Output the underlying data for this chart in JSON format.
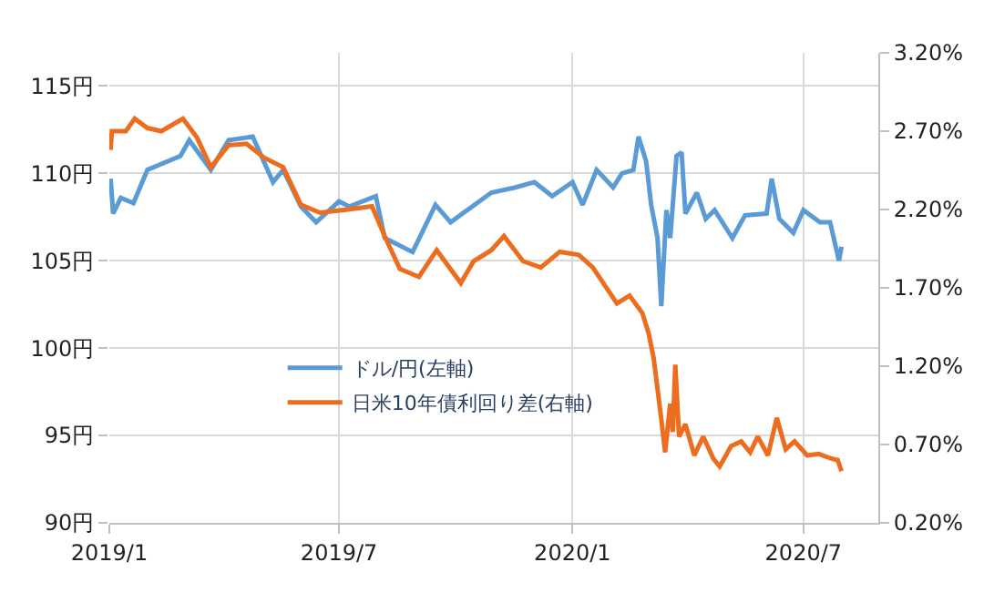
{
  "chart_data": {
    "type": "line",
    "xlim": [
      "2019-01-01",
      "2020-08-29"
    ],
    "xticks": [
      {
        "value": "2019-01-01",
        "label": "2019/1"
      },
      {
        "value": "2019-07-01",
        "label": "2019/7"
      },
      {
        "value": "2020-01-01",
        "label": "2020/1"
      },
      {
        "value": "2020-07-01",
        "label": "2020/7"
      }
    ],
    "ylim": [
      90,
      116.9
    ],
    "yticks": [
      {
        "value": 90,
        "label": "90円"
      },
      {
        "value": 95,
        "label": "95円"
      },
      {
        "value": 100,
        "label": "100円"
      },
      {
        "value": 105,
        "label": "105円"
      },
      {
        "value": 110,
        "label": "110円"
      },
      {
        "value": 115,
        "label": "115円"
      }
    ],
    "y2lim": [
      0.2,
      3.2
    ],
    "y2ticks": [
      {
        "value": 0.2,
        "label": "0.20%"
      },
      {
        "value": 0.7,
        "label": "0.70%"
      },
      {
        "value": 1.2,
        "label": "1.20%"
      },
      {
        "value": 1.7,
        "label": "1.70%"
      },
      {
        "value": 2.2,
        "label": "2.20%"
      },
      {
        "value": 2.7,
        "label": "2.70%"
      },
      {
        "value": 3.2,
        "label": "3.20%"
      }
    ],
    "grid": true,
    "legend": "bottom left",
    "marker": "none",
    "line_style": "solid",
    "series": [
      {
        "name": "ドル/円(左軸)",
        "color": "#5b9bd5",
        "axis": "y",
        "x": [
          "2019-01-02",
          "2019-01-04",
          "2019-01-10",
          "2019-01-20",
          "2019-01-31",
          "2019-02-26",
          "2019-03-05",
          "2019-03-22",
          "2019-04-05",
          "2019-04-24",
          "2019-05-10",
          "2019-05-18",
          "2019-06-01",
          "2019-06-13",
          "2019-07-01",
          "2019-07-09",
          "2019-07-30",
          "2019-08-06",
          "2019-08-28",
          "2019-09-15",
          "2019-09-27",
          "2019-10-10",
          "2019-10-29",
          "2019-11-17",
          "2019-12-02",
          "2019-12-16",
          "2020-01-01",
          "2020-01-09",
          "2020-01-20",
          "2020-02-02",
          "2020-02-09",
          "2020-02-18",
          "2020-02-22",
          "2020-02-28",
          "2020-03-03",
          "2020-03-08",
          "2020-03-11",
          "2020-03-15",
          "2020-03-18",
          "2020-03-23",
          "2020-03-27",
          "2020-03-30",
          "2020-04-08",
          "2020-04-15",
          "2020-04-22",
          "2020-05-06",
          "2020-05-16",
          "2020-06-02",
          "2020-06-06",
          "2020-06-12",
          "2020-06-23",
          "2020-07-01",
          "2020-07-14",
          "2020-07-22",
          "2020-07-29",
          "2020-07-31"
        ],
        "values": [
          109.7,
          107.7,
          108.6,
          108.3,
          110.2,
          111.0,
          111.9,
          110.2,
          111.9,
          112.1,
          109.5,
          110.2,
          108.1,
          107.2,
          108.4,
          108.1,
          108.7,
          106.3,
          105.5,
          108.2,
          107.2,
          107.9,
          108.9,
          109.2,
          109.5,
          108.7,
          109.5,
          108.2,
          110.2,
          109.2,
          110.0,
          110.2,
          112.1,
          110.7,
          108.2,
          106.3,
          102.4,
          107.9,
          106.3,
          111.0,
          111.2,
          107.7,
          108.9,
          107.4,
          107.9,
          106.3,
          107.6,
          107.7,
          109.7,
          107.4,
          106.6,
          107.9,
          107.2,
          107.2,
          105.0,
          105.8
        ]
      },
      {
        "name": "日米10年債利回り差(右軸)",
        "color": "#ed6d1f",
        "axis": "y2",
        "x": [
          "2019-01-02",
          "2019-01-03",
          "2019-01-14",
          "2019-01-21",
          "2019-01-31",
          "2019-02-11",
          "2019-02-28",
          "2019-03-11",
          "2019-03-22",
          "2019-04-05",
          "2019-04-19",
          "2019-05-03",
          "2019-05-18",
          "2019-06-01",
          "2019-06-16",
          "2019-07-08",
          "2019-07-27",
          "2019-08-06",
          "2019-08-18",
          "2019-09-02",
          "2019-09-16",
          "2019-10-05",
          "2019-10-15",
          "2019-10-29",
          "2019-11-08",
          "2019-11-23",
          "2019-12-07",
          "2019-12-22",
          "2020-01-06",
          "2020-01-17",
          "2020-01-27",
          "2020-02-05",
          "2020-02-15",
          "2020-02-25",
          "2020-03-01",
          "2020-03-05",
          "2020-03-11",
          "2020-03-14",
          "2020-03-18",
          "2020-03-20",
          "2020-03-22",
          "2020-03-25",
          "2020-03-30",
          "2020-04-06",
          "2020-04-13",
          "2020-04-21",
          "2020-04-26",
          "2020-05-05",
          "2020-05-13",
          "2020-05-20",
          "2020-05-26",
          "2020-06-03",
          "2020-06-10",
          "2020-06-17",
          "2020-06-24",
          "2020-07-04",
          "2020-07-13",
          "2020-07-23",
          "2020-07-28",
          "2020-07-31"
        ],
        "values": [
          2.58,
          2.7,
          2.7,
          2.78,
          2.72,
          2.7,
          2.78,
          2.66,
          2.47,
          2.61,
          2.62,
          2.53,
          2.47,
          2.23,
          2.18,
          2.2,
          2.22,
          2.03,
          1.82,
          1.77,
          1.94,
          1.73,
          1.87,
          1.94,
          2.03,
          1.87,
          1.83,
          1.93,
          1.91,
          1.83,
          1.71,
          1.6,
          1.65,
          1.54,
          1.41,
          1.25,
          0.86,
          0.65,
          0.96,
          0.78,
          1.21,
          0.75,
          0.83,
          0.63,
          0.75,
          0.61,
          0.56,
          0.69,
          0.72,
          0.65,
          0.75,
          0.63,
          0.87,
          0.67,
          0.72,
          0.63,
          0.64,
          0.61,
          0.6,
          0.53
        ]
      }
    ]
  }
}
